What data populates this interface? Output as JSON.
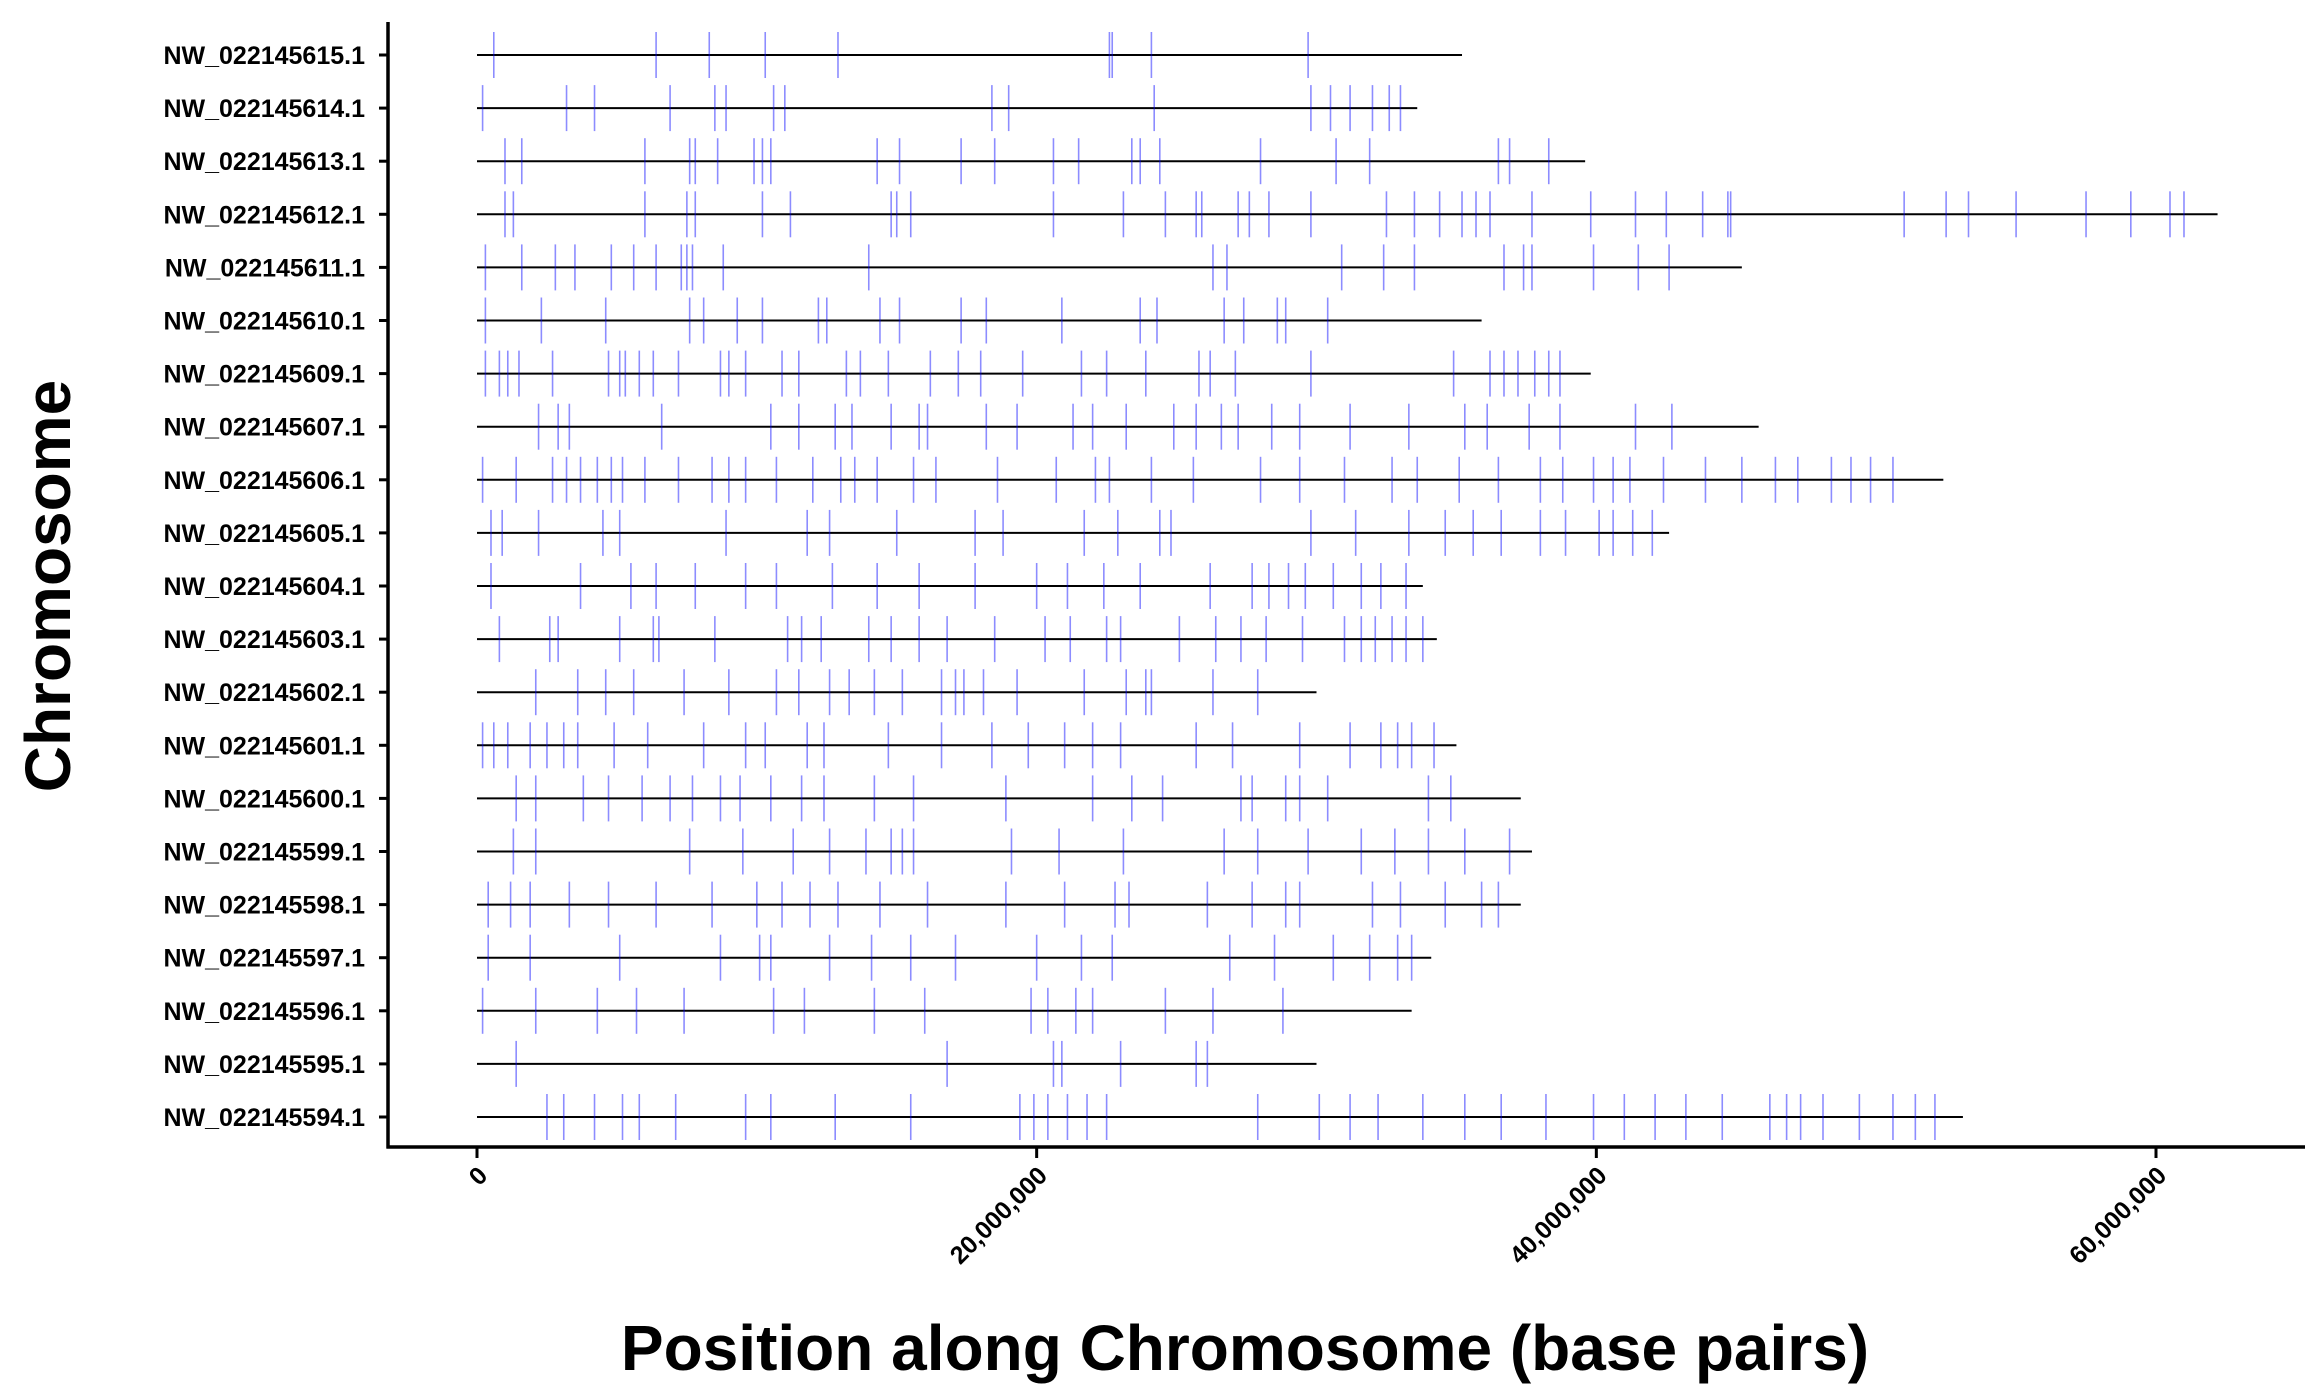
{
  "chart_data": {
    "type": "line",
    "xlabel": "Position along Chromosome (base pairs)",
    "ylabel": "Chromosome",
    "xlim": [
      -3000000,
      65000000
    ],
    "x_ticks": [
      0,
      20000000,
      40000000,
      60000000
    ],
    "x_tick_labels": [
      "0",
      "20,000,000",
      "40,000,000",
      "60,000,000"
    ],
    "line_color": "#000000",
    "mark_color": "#0000ff",
    "legend": "none",
    "grid": false,
    "chromosomes": [
      {
        "name": "NW_022145615.1",
        "length": 35200000,
        "marks": [
          600000,
          6400000,
          8300000,
          10300000,
          12900000,
          22600000,
          22700000,
          24100000,
          29700000
        ]
      },
      {
        "name": "NW_022145614.1",
        "length": 33600000,
        "marks": [
          200000,
          3200000,
          4200000,
          6900000,
          8500000,
          8900000,
          10600000,
          11000000,
          18400000,
          19000000,
          24200000,
          29800000,
          30500000,
          31200000,
          32000000,
          32600000,
          33000000
        ]
      },
      {
        "name": "NW_022145613.1",
        "length": 39600000,
        "marks": [
          1000000,
          1600000,
          6000000,
          7600000,
          7800000,
          8600000,
          9900000,
          10200000,
          10500000,
          14300000,
          15100000,
          17300000,
          18500000,
          20600000,
          21500000,
          23400000,
          23700000,
          24400000,
          28000000,
          30700000,
          31900000,
          36500000,
          36900000,
          38300000
        ]
      },
      {
        "name": "NW_022145612.1",
        "length": 62200000,
        "marks": [
          1000000,
          1300000,
          6000000,
          7500000,
          7800000,
          10200000,
          11200000,
          14800000,
          15000000,
          15500000,
          20600000,
          23100000,
          24600000,
          25700000,
          25900000,
          27200000,
          27600000,
          28300000,
          29800000,
          32500000,
          33500000,
          34400000,
          35200000,
          35700000,
          36200000,
          37700000,
          39800000,
          41400000,
          42500000,
          43800000,
          44700000,
          44800000,
          51000000,
          52500000,
          53300000,
          55000000,
          57500000,
          59100000,
          60500000,
          61000000
        ]
      },
      {
        "name": "NW_022145611.1",
        "length": 45200000,
        "marks": [
          300000,
          1600000,
          2800000,
          3500000,
          4800000,
          5600000,
          6400000,
          7300000,
          7500000,
          7700000,
          8800000,
          14000000,
          26300000,
          26800000,
          30900000,
          32400000,
          33500000,
          36700000,
          37400000,
          37700000,
          39900000,
          41500000,
          42600000
        ]
      },
      {
        "name": "NW_022145610.1",
        "length": 35900000,
        "marks": [
          300000,
          2300000,
          4600000,
          7600000,
          8100000,
          9300000,
          10200000,
          12200000,
          12500000,
          14400000,
          15100000,
          17300000,
          18200000,
          20900000,
          23700000,
          24300000,
          26700000,
          27400000,
          28600000,
          28900000,
          30400000
        ]
      },
      {
        "name": "NW_022145609.1",
        "length": 39800000,
        "marks": [
          300000,
          800000,
          1100000,
          1500000,
          2700000,
          4700000,
          5100000,
          5300000,
          5800000,
          6300000,
          7200000,
          8700000,
          9000000,
          9600000,
          10900000,
          11500000,
          13200000,
          13700000,
          14700000,
          16200000,
          17200000,
          18000000,
          19500000,
          21600000,
          22500000,
          23900000,
          25800000,
          26200000,
          27100000,
          29800000,
          34900000,
          36200000,
          36700000,
          37200000,
          37800000,
          38300000,
          38700000
        ]
      },
      {
        "name": "NW_022145607.1",
        "length": 45800000,
        "marks": [
          2200000,
          2900000,
          3300000,
          6600000,
          10500000,
          11500000,
          12800000,
          13400000,
          14800000,
          15800000,
          16100000,
          18200000,
          19300000,
          21300000,
          22000000,
          23200000,
          24900000,
          25700000,
          26600000,
          27200000,
          28400000,
          29400000,
          31200000,
          33300000,
          35300000,
          36100000,
          37600000,
          38700000,
          41400000,
          42700000
        ]
      },
      {
        "name": "NW_022145606.1",
        "length": 52400000,
        "marks": [
          200000,
          1400000,
          2700000,
          3200000,
          3700000,
          4300000,
          4800000,
          5200000,
          6000000,
          7200000,
          8400000,
          9000000,
          9600000,
          10700000,
          12000000,
          13000000,
          13500000,
          14300000,
          15600000,
          16400000,
          18600000,
          20700000,
          22100000,
          22600000,
          24100000,
          25600000,
          28000000,
          29400000,
          31000000,
          32700000,
          33600000,
          35100000,
          36500000,
          38000000,
          38800000,
          39900000,
          40600000,
          41200000,
          42400000,
          43900000,
          45200000,
          46400000,
          47200000,
          48400000,
          49100000,
          49800000,
          50600000
        ]
      },
      {
        "name": "NW_022145605.1",
        "length": 42600000,
        "marks": [
          500000,
          900000,
          2200000,
          4500000,
          5100000,
          8900000,
          11800000,
          12600000,
          15000000,
          17800000,
          18800000,
          21700000,
          22900000,
          24400000,
          24800000,
          29800000,
          31400000,
          33300000,
          34600000,
          35600000,
          36600000,
          38000000,
          38900000,
          40100000,
          40600000,
          41300000,
          42000000
        ]
      },
      {
        "name": "NW_022145604.1",
        "length": 33800000,
        "marks": [
          500000,
          3700000,
          5500000,
          6400000,
          7800000,
          9600000,
          10700000,
          12700000,
          14300000,
          15800000,
          17800000,
          20000000,
          21100000,
          22400000,
          23700000,
          26200000,
          27700000,
          28300000,
          29000000,
          29600000,
          30600000,
          31600000,
          32300000,
          33200000
        ]
      },
      {
        "name": "NW_022145603.1",
        "length": 34300000,
        "marks": [
          800000,
          2600000,
          2900000,
          5100000,
          6300000,
          6500000,
          8500000,
          11100000,
          11600000,
          12300000,
          14000000,
          14800000,
          15800000,
          16800000,
          18500000,
          20300000,
          21200000,
          22500000,
          23000000,
          25100000,
          26400000,
          27300000,
          28200000,
          29500000,
          31000000,
          31600000,
          32100000,
          32700000,
          33200000,
          33800000
        ]
      },
      {
        "name": "NW_022145602.1",
        "length": 30000000,
        "marks": [
          2100000,
          3600000,
          4600000,
          5600000,
          7400000,
          9000000,
          10700000,
          11500000,
          12600000,
          13300000,
          14200000,
          15200000,
          16600000,
          17100000,
          17400000,
          18100000,
          19300000,
          21700000,
          23200000,
          23900000,
          24100000,
          26300000,
          27900000
        ]
      },
      {
        "name": "NW_022145601.1",
        "length": 35000000,
        "marks": [
          200000,
          600000,
          1100000,
          1900000,
          2500000,
          3100000,
          3600000,
          4900000,
          6100000,
          8100000,
          9600000,
          10300000,
          11800000,
          12400000,
          14700000,
          16600000,
          18400000,
          19700000,
          21000000,
          22000000,
          23000000,
          25700000,
          27000000,
          29400000,
          31200000,
          32300000,
          32900000,
          33400000,
          34200000
        ]
      },
      {
        "name": "NW_022145600.1",
        "length": 37300000,
        "marks": [
          1400000,
          2100000,
          3800000,
          4700000,
          5900000,
          6900000,
          7700000,
          8700000,
          9400000,
          10500000,
          11600000,
          12400000,
          14200000,
          15600000,
          18900000,
          22000000,
          23400000,
          24500000,
          27300000,
          27700000,
          28900000,
          29400000,
          30400000,
          34000000,
          34800000
        ]
      },
      {
        "name": "NW_022145599.1",
        "length": 37700000,
        "marks": [
          1300000,
          2100000,
          7600000,
          9500000,
          11300000,
          12600000,
          13900000,
          14800000,
          15200000,
          15600000,
          19100000,
          20800000,
          23100000,
          26700000,
          27900000,
          29700000,
          31600000,
          32800000,
          34000000,
          35300000,
          36900000
        ]
      },
      {
        "name": "NW_022145598.1",
        "length": 37300000,
        "marks": [
          400000,
          1200000,
          1900000,
          3300000,
          4700000,
          6400000,
          8400000,
          10000000,
          10900000,
          11900000,
          12900000,
          14400000,
          16100000,
          18900000,
          21000000,
          22800000,
          23300000,
          26100000,
          27700000,
          28900000,
          29400000,
          32000000,
          33000000,
          34600000,
          35900000,
          36500000
        ]
      },
      {
        "name": "NW_022145597.1",
        "length": 34100000,
        "marks": [
          400000,
          1900000,
          5100000,
          8700000,
          10100000,
          10500000,
          12600000,
          14100000,
          15500000,
          17100000,
          20000000,
          21600000,
          22700000,
          26900000,
          28500000,
          30600000,
          31900000,
          32900000,
          33400000
        ]
      },
      {
        "name": "NW_022145596.1",
        "length": 33400000,
        "marks": [
          200000,
          2100000,
          4300000,
          5700000,
          7400000,
          10600000,
          11700000,
          14200000,
          16000000,
          19800000,
          20400000,
          21400000,
          22000000,
          24600000,
          26300000,
          28800000
        ]
      },
      {
        "name": "NW_022145595.1",
        "length": 30000000,
        "marks": [
          1400000,
          16800000,
          20600000,
          20900000,
          23000000,
          25700000,
          26100000
        ]
      },
      {
        "name": "NW_022145594.1",
        "length": 53100000,
        "marks": [
          2500000,
          3100000,
          4200000,
          5200000,
          5800000,
          7100000,
          9600000,
          10500000,
          12800000,
          15500000,
          19400000,
          19900000,
          20400000,
          21100000,
          21800000,
          22500000,
          27900000,
          30100000,
          31200000,
          32200000,
          33800000,
          35300000,
          36600000,
          38200000,
          39900000,
          41000000,
          42100000,
          43200000,
          44500000,
          46200000,
          46800000,
          47300000,
          48100000,
          49400000,
          50600000,
          51400000,
          52100000
        ]
      }
    ]
  }
}
